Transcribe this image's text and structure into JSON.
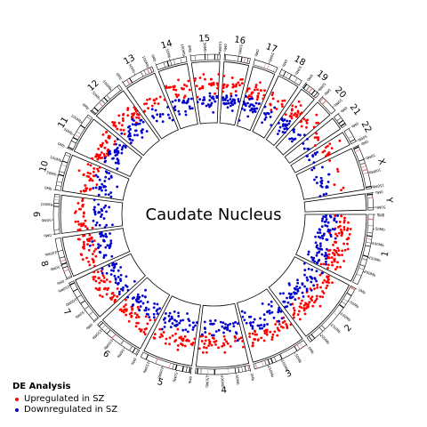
{
  "chart_data": {
    "type": "circos-scatter",
    "title": "Caudate Nucleus",
    "chromosomes": [
      {
        "name": "1",
        "size": 249,
        "ticks": [
          "0Mb",
          "50Mb",
          "100Mb",
          "150Mb",
          "200Mb"
        ]
      },
      {
        "name": "2",
        "size": 243,
        "ticks": [
          "0Mb",
          "50Mb",
          "100Mb",
          "150Mb",
          "200Mb"
        ]
      },
      {
        "name": "3",
        "size": 198,
        "ticks": [
          "0Mb",
          "50Mb",
          "100Mb",
          "150Mb"
        ]
      },
      {
        "name": "4",
        "size": 191,
        "ticks": [
          "0Mb",
          "50Mb",
          "100Mb",
          "150Mb"
        ]
      },
      {
        "name": "5",
        "size": 181,
        "ticks": [
          "0Mb",
          "50Mb",
          "100Mb",
          "150Mb"
        ]
      },
      {
        "name": "6",
        "size": 171,
        "ticks": [
          "0Mb",
          "50Mb",
          "100Mb",
          "150Mb"
        ]
      },
      {
        "name": "7",
        "size": 159,
        "ticks": [
          "0Mb",
          "50Mb",
          "100Mb",
          "150Mb"
        ]
      },
      {
        "name": "8",
        "size": 145,
        "ticks": [
          "0Mb",
          "50Mb",
          "100Mb"
        ]
      },
      {
        "name": "9",
        "size": 138,
        "ticks": [
          "0Mb",
          "50Mb",
          "100Mb"
        ]
      },
      {
        "name": "10",
        "size": 134,
        "ticks": [
          "0Mb",
          "50Mb",
          "100Mb"
        ]
      },
      {
        "name": "11",
        "size": 135,
        "ticks": [
          "0Mb",
          "50Mb",
          "100Mb"
        ]
      },
      {
        "name": "12",
        "size": 133,
        "ticks": [
          "0Mb",
          "50Mb",
          "100Mb"
        ]
      },
      {
        "name": "13",
        "size": 114,
        "ticks": [
          "0Mb",
          "50Mb",
          "100Mb"
        ]
      },
      {
        "name": "14",
        "size": 107,
        "ticks": [
          "0Mb",
          "50Mb",
          "100Mb"
        ]
      },
      {
        "name": "15",
        "size": 102,
        "ticks": [
          "0Mb",
          "50Mb",
          "100Mb"
        ]
      },
      {
        "name": "16",
        "size": 90,
        "ticks": [
          "0Mb",
          "50Mb"
        ]
      },
      {
        "name": "17",
        "size": 83,
        "ticks": [
          "0Mb",
          "50Mb"
        ]
      },
      {
        "name": "18",
        "size": 80,
        "ticks": [
          "0Mb",
          "50Mb"
        ]
      },
      {
        "name": "19",
        "size": 59,
        "ticks": [
          "0Mb",
          "50Mb"
        ]
      },
      {
        "name": "20",
        "size": 64,
        "ticks": [
          "0Mb",
          "50Mb"
        ]
      },
      {
        "name": "21",
        "size": 47,
        "ticks": [
          "0Mb"
        ]
      },
      {
        "name": "22",
        "size": 51,
        "ticks": [
          "0Mb",
          "50Mb"
        ]
      },
      {
        "name": "X",
        "size": 155,
        "ticks": [
          "0Mb",
          "50Mb",
          "100Mb",
          "150Mb"
        ]
      },
      {
        "name": "Y",
        "size": 59,
        "ticks": [
          "0Mb",
          "50Mb"
        ]
      }
    ],
    "series": [
      {
        "name": "Upregulated in SZ",
        "color": "#ff0000",
        "marker": "dot"
      },
      {
        "name": "Downregulated in SZ",
        "color": "#0000cc",
        "marker": "dot"
      }
    ],
    "legend": {
      "title": "DE Analysis",
      "placement": "bottom-left"
    },
    "note_density": {
      "points_per_chromosome_up": [
        70,
        60,
        45,
        42,
        40,
        40,
        38,
        35,
        28,
        32,
        38,
        35,
        15,
        22,
        24,
        22,
        26,
        12,
        20,
        12,
        6,
        12,
        6,
        0
      ],
      "points_per_chromosome_down": [
        75,
        60,
        45,
        38,
        38,
        38,
        36,
        34,
        26,
        30,
        36,
        34,
        14,
        22,
        22,
        28,
        28,
        12,
        22,
        12,
        5,
        10,
        22,
        0
      ]
    }
  }
}
